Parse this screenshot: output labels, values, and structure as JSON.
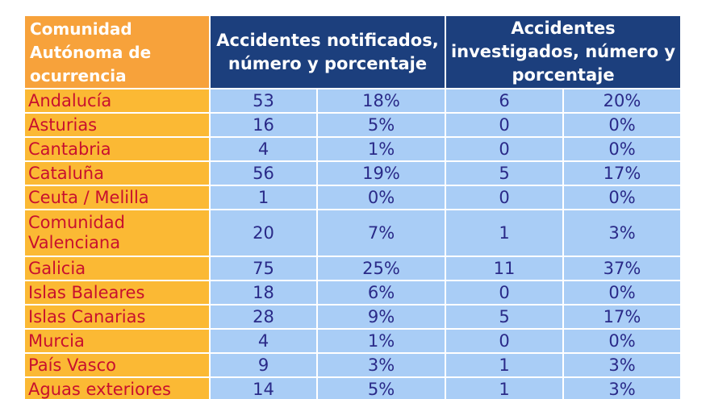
{
  "table": {
    "headers": {
      "region": "Comunidad Autónoma de ocurrencia",
      "notified": "Accidentes notificados, número y porcentaje",
      "investigated": "Accidentes investigados, número y porcentaje"
    },
    "rows": [
      {
        "region": "Andalucía",
        "notified_n": "53",
        "notified_pct": "18%",
        "investigated_n": "6",
        "investigated_pct": "20%"
      },
      {
        "region": "Asturias",
        "notified_n": "16",
        "notified_pct": "5%",
        "investigated_n": "0",
        "investigated_pct": "0%"
      },
      {
        "region": "Cantabria",
        "notified_n": "4",
        "notified_pct": "1%",
        "investigated_n": "0",
        "investigated_pct": "0%"
      },
      {
        "region": "Cataluña",
        "notified_n": "56",
        "notified_pct": "19%",
        "investigated_n": "5",
        "investigated_pct": "17%"
      },
      {
        "region": "Ceuta / Melilla",
        "notified_n": "1",
        "notified_pct": "0%",
        "investigated_n": "0",
        "investigated_pct": "0%"
      },
      {
        "region": "Comunidad Valenciana",
        "notified_n": "20",
        "notified_pct": "7%",
        "investigated_n": "1",
        "investigated_pct": "3%"
      },
      {
        "region": "Galicia",
        "notified_n": "75",
        "notified_pct": "25%",
        "investigated_n": "11",
        "investigated_pct": "37%"
      },
      {
        "region": "Islas Baleares",
        "notified_n": "18",
        "notified_pct": "6%",
        "investigated_n": "0",
        "investigated_pct": "0%"
      },
      {
        "region": "Islas Canarias",
        "notified_n": "28",
        "notified_pct": "9%",
        "investigated_n": "5",
        "investigated_pct": "17%"
      },
      {
        "region": "Murcia",
        "notified_n": "4",
        "notified_pct": "1%",
        "investigated_n": "0",
        "investigated_pct": "0%"
      },
      {
        "region": "País Vasco",
        "notified_n": "9",
        "notified_pct": "3%",
        "investigated_n": "1",
        "investigated_pct": "3%"
      },
      {
        "region": "Aguas exteriores",
        "notified_n": "14",
        "notified_pct": "5%",
        "investigated_n": "1",
        "investigated_pct": "3%"
      }
    ]
  },
  "colors": {
    "header_region_bg": "#f7a23b",
    "header_group_bg": "#1c3f7d",
    "region_cell_bg": "#fbb934",
    "region_text": "#c8102e",
    "data_cell_bg": "#a9cdf6",
    "data_text": "#2a2a88"
  }
}
